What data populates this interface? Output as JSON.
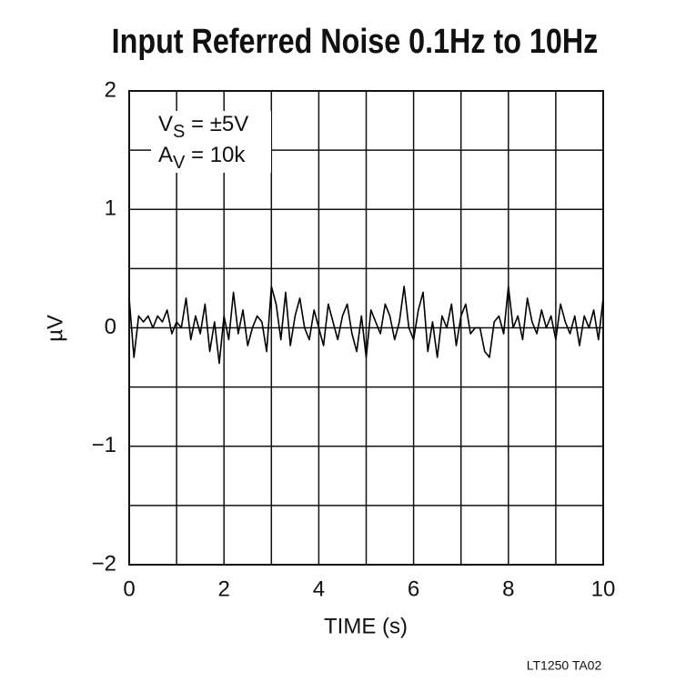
{
  "chart_data": {
    "type": "line",
    "title": "Input Referred Noise 0.1Hz to 10Hz",
    "xlabel": "TIME (s)",
    "ylabel": "µV",
    "annotations": [
      {
        "main": "V",
        "sub": "S",
        "rest": " = ±5V"
      },
      {
        "main": "A",
        "sub": "V",
        "rest": " = 10k"
      }
    ],
    "footer": "LT1250 TA02",
    "xlim": [
      0,
      10
    ],
    "xticks": [
      0,
      2,
      4,
      6,
      8,
      10
    ],
    "xminor": [
      1,
      3,
      5,
      7,
      9
    ],
    "ylim": [
      -2,
      2
    ],
    "yticks": [
      {
        "value": -2,
        "label": "−2"
      },
      {
        "value": -1,
        "label": "−1"
      },
      0,
      1,
      2
    ],
    "yminor": [
      -1.5,
      -0.5,
      0.5,
      1.5
    ],
    "grid": true,
    "series": [
      {
        "color": "#000000",
        "x": [
          0,
          0.1,
          0.2,
          0.3,
          0.4,
          0.5,
          0.6,
          0.7,
          0.8,
          0.9,
          1,
          1.1,
          1.2,
          1.3,
          1.4,
          1.5,
          1.6,
          1.7,
          1.8,
          1.9,
          2,
          2.1,
          2.2,
          2.3,
          2.4,
          2.5,
          2.6,
          2.7,
          2.8,
          2.9,
          3,
          3.1,
          3.2,
          3.3,
          3.4,
          3.5,
          3.6,
          3.7,
          3.8,
          3.9,
          4,
          4.1,
          4.2,
          4.3,
          4.4,
          4.5,
          4.6,
          4.7,
          4.8,
          4.9,
          5,
          5.1,
          5.2,
          5.3,
          5.4,
          5.5,
          5.6,
          5.7,
          5.8,
          5.9,
          6,
          6.1,
          6.2,
          6.3,
          6.4,
          6.5,
          6.6,
          6.7,
          6.8,
          6.9,
          7,
          7.1,
          7.2,
          7.3,
          7.4,
          7.5,
          7.6,
          7.7,
          7.8,
          7.9,
          8,
          8.1,
          8.2,
          8.3,
          8.4,
          8.5,
          8.6,
          8.7,
          8.8,
          8.9,
          9,
          9.1,
          9.2,
          9.3,
          9.4,
          9.5,
          9.6,
          9.7,
          9.8,
          9.9,
          10
        ],
        "values": [
          0.25,
          -0.25,
          0.1,
          0.05,
          0.1,
          0.0,
          0.1,
          0.05,
          0.15,
          -0.05,
          0.05,
          0.0,
          0.25,
          -0.1,
          0.1,
          -0.05,
          0.2,
          -0.2,
          0.05,
          -0.3,
          0.1,
          -0.1,
          0.3,
          -0.05,
          0.15,
          -0.15,
          0.0,
          0.1,
          0.05,
          -0.2,
          0.35,
          0.2,
          -0.1,
          0.3,
          -0.15,
          0.1,
          0.25,
          0.0,
          -0.1,
          0.15,
          0.0,
          -0.15,
          0.2,
          0.05,
          -0.1,
          0.1,
          0.2,
          -0.05,
          -0.2,
          0.1,
          -0.25,
          0.15,
          0.05,
          -0.05,
          0.2,
          0.1,
          -0.1,
          0.05,
          0.35,
          0.0,
          -0.1,
          0.15,
          0.3,
          -0.2,
          0.05,
          -0.25,
          0.1,
          0.0,
          0.2,
          -0.15,
          0.1,
          0.2,
          -0.05,
          0.0,
          0.0,
          -0.2,
          -0.25,
          0.05,
          0.1,
          -0.05,
          0.35,
          0.0,
          0.1,
          -0.1,
          0.25,
          0.05,
          -0.05,
          0.15,
          0.0,
          0.1,
          -0.1,
          0.2,
          0.05,
          -0.05,
          0.1,
          -0.15,
          0.1,
          0.0,
          0.15,
          -0.1,
          0.25
        ]
      }
    ]
  }
}
